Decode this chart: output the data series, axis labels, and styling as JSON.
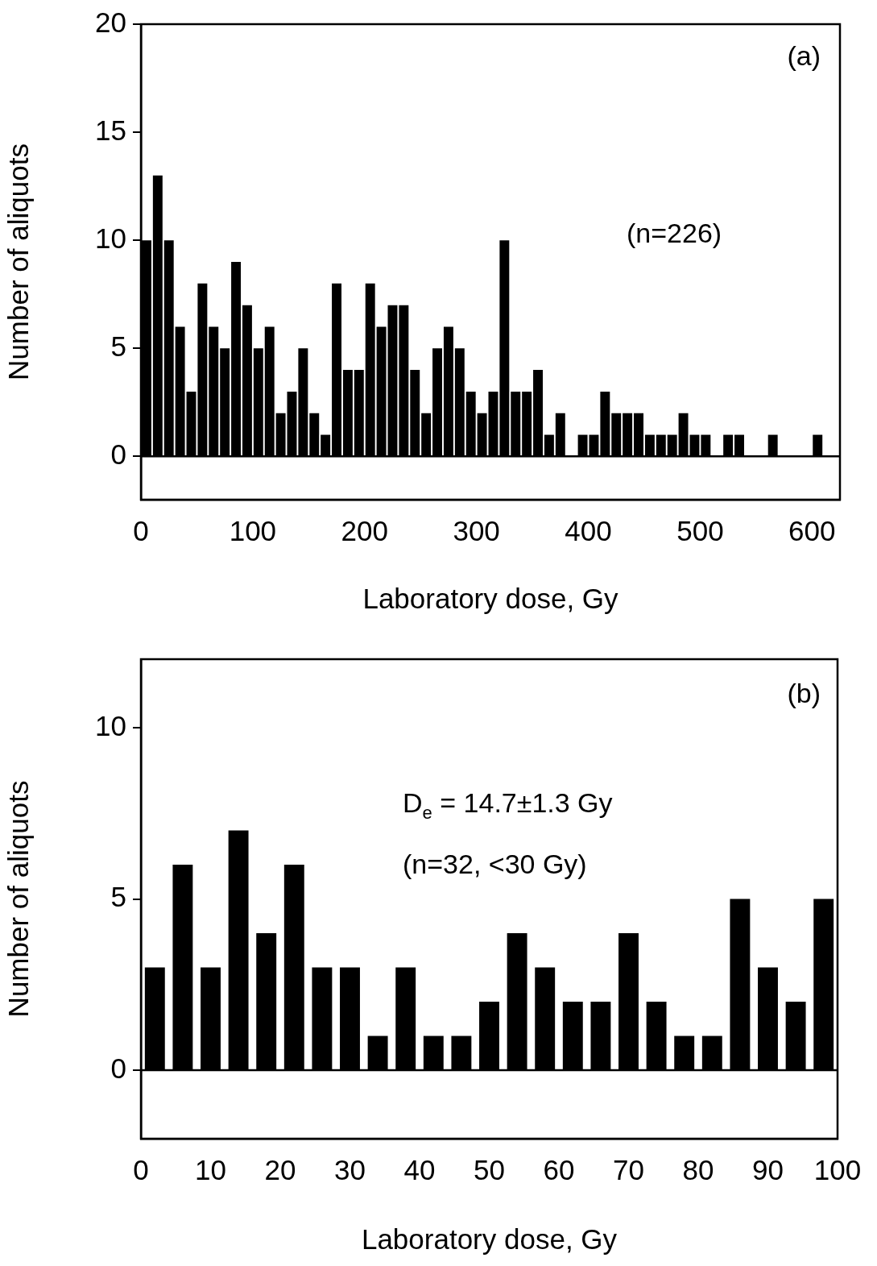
{
  "chart_data": [
    {
      "type": "histogram",
      "xlabel": "Laboratory dose, Gy",
      "ylabel": "Number of aliquots",
      "color": "#000000",
      "bins": [
        0,
        10,
        20,
        30,
        40,
        50,
        60,
        70,
        80,
        90,
        100,
        110,
        120,
        130,
        140,
        150,
        160,
        170,
        180,
        190,
        200,
        210,
        220,
        230,
        240,
        250,
        260,
        270,
        280,
        290,
        300,
        310,
        320,
        330,
        340,
        350,
        360,
        370,
        380,
        390,
        400,
        410,
        420,
        430,
        440,
        450,
        460,
        470,
        480,
        490,
        500,
        510,
        520,
        530,
        540,
        550,
        560,
        570,
        580,
        590,
        600,
        610
      ],
      "values": [
        10,
        13,
        10,
        6,
        3,
        8,
        6,
        5,
        9,
        7,
        5,
        6,
        2,
        3,
        5,
        2,
        1,
        8,
        4,
        4,
        8,
        6,
        7,
        7,
        4,
        2,
        5,
        6,
        5,
        3,
        2,
        3,
        10,
        3,
        3,
        4,
        1,
        2,
        0,
        1,
        1,
        3,
        2,
        2,
        2,
        1,
        1,
        1,
        2,
        1,
        1,
        0,
        1,
        1,
        0,
        0,
        1,
        0,
        0,
        0,
        1
      ],
      "xlim": [
        0,
        625
      ],
      "xticks": [
        0,
        100,
        200,
        300,
        400,
        500,
        600
      ],
      "ylim": [
        -2,
        20
      ],
      "yticks": [
        0,
        5,
        10,
        15,
        20
      ],
      "ref_lines": [
        {
          "axis": "y",
          "value": 0,
          "color": "#000000"
        }
      ],
      "annotations": [
        "(a)",
        "(n=226)"
      ]
    },
    {
      "type": "histogram",
      "xlabel": "Laboratory dose, Gy",
      "ylabel": "Number of aliquots",
      "color": "#000000",
      "bins": [
        0,
        4,
        8,
        12,
        16,
        20,
        24,
        28,
        32,
        36,
        40,
        44,
        48,
        52,
        56,
        60,
        64,
        68,
        72,
        76,
        80,
        84,
        88,
        92,
        96,
        100
      ],
      "values": [
        3,
        6,
        3,
        7,
        4,
        6,
        3,
        3,
        1,
        3,
        1,
        1,
        2,
        4,
        3,
        2,
        2,
        4,
        2,
        1,
        1,
        5,
        3,
        2,
        5
      ],
      "xlim": [
        0,
        100
      ],
      "xticks": [
        0,
        10,
        20,
        30,
        40,
        50,
        60,
        70,
        80,
        90,
        100
      ],
      "ylim": [
        -2,
        12
      ],
      "yticks": [
        0,
        5,
        10
      ],
      "ref_lines": [
        {
          "axis": "y",
          "value": 0,
          "color": "#000000"
        }
      ],
      "annotations": [
        "(b)",
        "D$_{e}$ = 14.7±1.3 Gy",
        "(n=32, <30 Gy)"
      ]
    }
  ]
}
